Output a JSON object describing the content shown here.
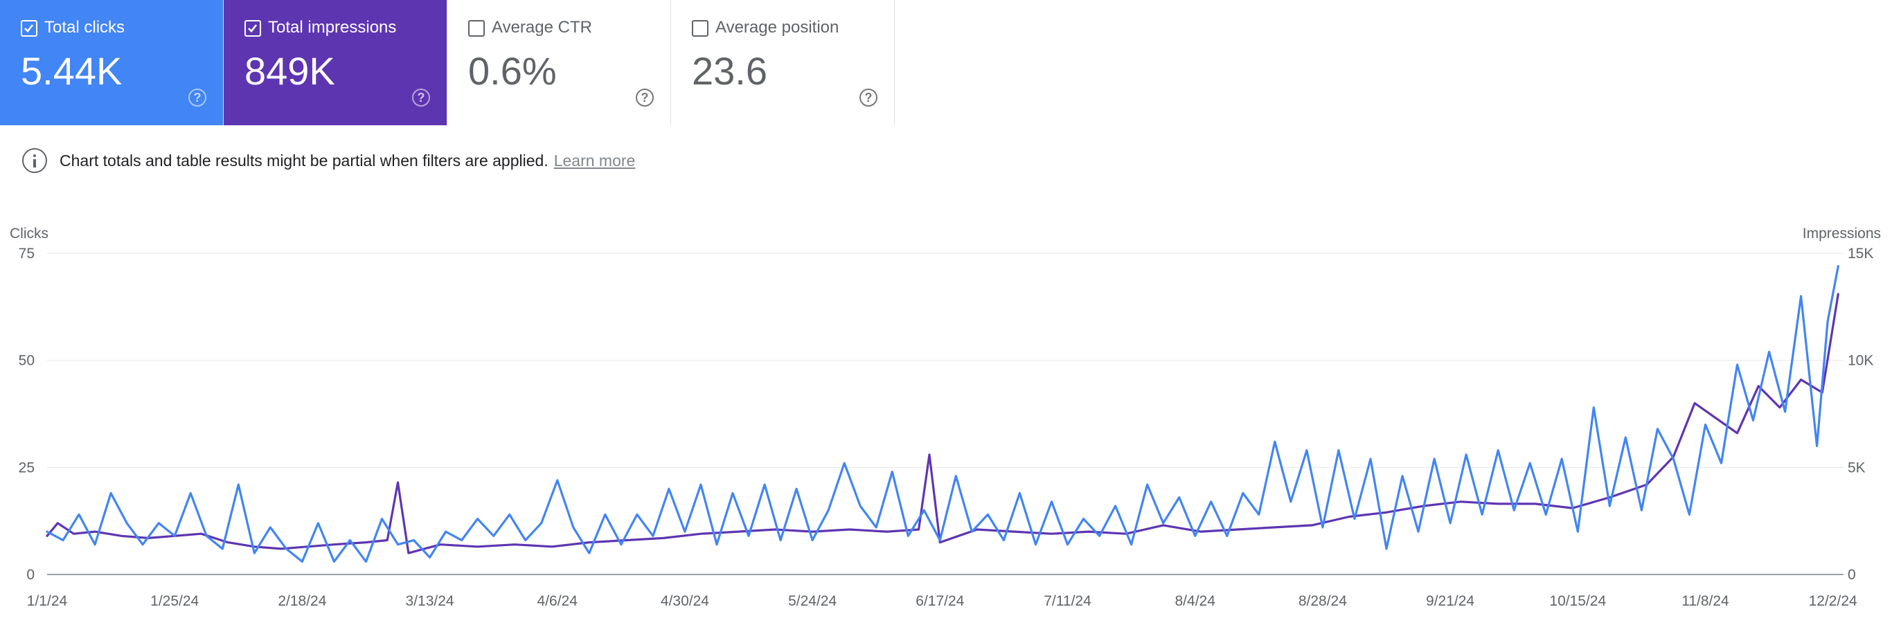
{
  "cards": [
    {
      "id": "clicks",
      "label": "Total clicks",
      "value": "5.44K",
      "checked": true
    },
    {
      "id": "impressions",
      "label": "Total impressions",
      "value": "849K",
      "checked": true
    },
    {
      "id": "ctr",
      "label": "Average CTR",
      "value": "0.6%",
      "checked": false
    },
    {
      "id": "position",
      "label": "Average position",
      "value": "23.6",
      "checked": false
    }
  ],
  "notice": {
    "text": "Chart totals and table results might be partial when filters are applied.",
    "link": "Learn more"
  },
  "colors": {
    "clicks": "#4285f4",
    "impressions": "#5e35b1"
  },
  "chart_data": {
    "type": "line",
    "ylabel_left": "Clicks",
    "ylabel_right": "Impressions",
    "yticks_left": [
      "0",
      "25",
      "50",
      "75"
    ],
    "yticks_right": [
      "0",
      "5K",
      "10K",
      "15K"
    ],
    "ylim_left": [
      0,
      75
    ],
    "ylim_right": [
      0,
      15000
    ],
    "xrange": [
      "2024-01-01",
      "2024-12-04"
    ],
    "xtick_labels": [
      "1/1/24",
      "1/25/24",
      "2/18/24",
      "3/13/24",
      "4/6/24",
      "4/30/24",
      "5/24/24",
      "6/17/24",
      "7/11/24",
      "8/4/24",
      "8/28/24",
      "9/21/24",
      "10/15/24",
      "11/8/24",
      "12/2/24"
    ],
    "xtick_dates": [
      "2024-01-01",
      "2024-01-25",
      "2024-02-18",
      "2024-03-13",
      "2024-04-06",
      "2024-04-30",
      "2024-05-24",
      "2024-06-17",
      "2024-07-11",
      "2024-08-04",
      "2024-08-28",
      "2024-09-21",
      "2024-10-15",
      "2024-11-08",
      "2024-12-02"
    ],
    "grid": true,
    "series": [
      {
        "name": "Clicks",
        "axis": "left",
        "points": [
          [
            "2024-01-01",
            10
          ],
          [
            "2024-01-04",
            8
          ],
          [
            "2024-01-07",
            14
          ],
          [
            "2024-01-10",
            7
          ],
          [
            "2024-01-13",
            19
          ],
          [
            "2024-01-16",
            12
          ],
          [
            "2024-01-19",
            7
          ],
          [
            "2024-01-22",
            12
          ],
          [
            "2024-01-25",
            9
          ],
          [
            "2024-01-28",
            19
          ],
          [
            "2024-01-31",
            9
          ],
          [
            "2024-02-03",
            6
          ],
          [
            "2024-02-06",
            21
          ],
          [
            "2024-02-09",
            5
          ],
          [
            "2024-02-12",
            11
          ],
          [
            "2024-02-15",
            6
          ],
          [
            "2024-02-18",
            3
          ],
          [
            "2024-02-21",
            12
          ],
          [
            "2024-02-24",
            3
          ],
          [
            "2024-02-27",
            8
          ],
          [
            "2024-03-01",
            3
          ],
          [
            "2024-03-04",
            13
          ],
          [
            "2024-03-07",
            7
          ],
          [
            "2024-03-10",
            8
          ],
          [
            "2024-03-13",
            4
          ],
          [
            "2024-03-16",
            10
          ],
          [
            "2024-03-19",
            8
          ],
          [
            "2024-03-22",
            13
          ],
          [
            "2024-03-25",
            9
          ],
          [
            "2024-03-28",
            14
          ],
          [
            "2024-03-31",
            8
          ],
          [
            "2024-04-03",
            12
          ],
          [
            "2024-04-06",
            22
          ],
          [
            "2024-04-09",
            11
          ],
          [
            "2024-04-12",
            5
          ],
          [
            "2024-04-15",
            14
          ],
          [
            "2024-04-18",
            7
          ],
          [
            "2024-04-21",
            14
          ],
          [
            "2024-04-24",
            9
          ],
          [
            "2024-04-27",
            20
          ],
          [
            "2024-04-30",
            10
          ],
          [
            "2024-05-03",
            21
          ],
          [
            "2024-05-06",
            7
          ],
          [
            "2024-05-09",
            19
          ],
          [
            "2024-05-12",
            9
          ],
          [
            "2024-05-15",
            21
          ],
          [
            "2024-05-18",
            8
          ],
          [
            "2024-05-21",
            20
          ],
          [
            "2024-05-24",
            8
          ],
          [
            "2024-05-27",
            15
          ],
          [
            "2024-05-30",
            26
          ],
          [
            "2024-06-02",
            16
          ],
          [
            "2024-06-05",
            11
          ],
          [
            "2024-06-08",
            24
          ],
          [
            "2024-06-11",
            9
          ],
          [
            "2024-06-14",
            15
          ],
          [
            "2024-06-17",
            8
          ],
          [
            "2024-06-20",
            23
          ],
          [
            "2024-06-23",
            10
          ],
          [
            "2024-06-26",
            14
          ],
          [
            "2024-06-29",
            8
          ],
          [
            "2024-07-02",
            19
          ],
          [
            "2024-07-05",
            7
          ],
          [
            "2024-07-08",
            17
          ],
          [
            "2024-07-11",
            7
          ],
          [
            "2024-07-14",
            13
          ],
          [
            "2024-07-17",
            9
          ],
          [
            "2024-07-20",
            16
          ],
          [
            "2024-07-23",
            7
          ],
          [
            "2024-07-26",
            21
          ],
          [
            "2024-07-29",
            12
          ],
          [
            "2024-08-01",
            18
          ],
          [
            "2024-08-04",
            9
          ],
          [
            "2024-08-07",
            17
          ],
          [
            "2024-08-10",
            9
          ],
          [
            "2024-08-13",
            19
          ],
          [
            "2024-08-16",
            14
          ],
          [
            "2024-08-19",
            31
          ],
          [
            "2024-08-22",
            17
          ],
          [
            "2024-08-25",
            29
          ],
          [
            "2024-08-28",
            11
          ],
          [
            "2024-08-31",
            29
          ],
          [
            "2024-09-03",
            13
          ],
          [
            "2024-09-06",
            27
          ],
          [
            "2024-09-09",
            6
          ],
          [
            "2024-09-12",
            23
          ],
          [
            "2024-09-15",
            10
          ],
          [
            "2024-09-18",
            27
          ],
          [
            "2024-09-21",
            12
          ],
          [
            "2024-09-24",
            28
          ],
          [
            "2024-09-27",
            14
          ],
          [
            "2024-09-30",
            29
          ],
          [
            "2024-10-03",
            15
          ],
          [
            "2024-10-06",
            26
          ],
          [
            "2024-10-09",
            14
          ],
          [
            "2024-10-12",
            27
          ],
          [
            "2024-10-15",
            10
          ],
          [
            "2024-10-18",
            39
          ],
          [
            "2024-10-21",
            16
          ],
          [
            "2024-10-24",
            32
          ],
          [
            "2024-10-27",
            15
          ],
          [
            "2024-10-30",
            34
          ],
          [
            "2024-11-02",
            27
          ],
          [
            "2024-11-05",
            14
          ],
          [
            "2024-11-08",
            35
          ],
          [
            "2024-11-11",
            26
          ],
          [
            "2024-11-14",
            49
          ],
          [
            "2024-11-17",
            36
          ],
          [
            "2024-11-20",
            52
          ],
          [
            "2024-11-23",
            38
          ],
          [
            "2024-11-26",
            65
          ],
          [
            "2024-11-29",
            30
          ],
          [
            "2024-12-01",
            59
          ],
          [
            "2024-12-03",
            72
          ]
        ]
      },
      {
        "name": "Impressions",
        "axis": "right",
        "points": [
          [
            "2024-01-01",
            1800
          ],
          [
            "2024-01-03",
            2400
          ],
          [
            "2024-01-06",
            1900
          ],
          [
            "2024-01-10",
            2000
          ],
          [
            "2024-01-15",
            1800
          ],
          [
            "2024-01-20",
            1700
          ],
          [
            "2024-01-25",
            1800
          ],
          [
            "2024-01-30",
            1900
          ],
          [
            "2024-02-04",
            1500
          ],
          [
            "2024-02-09",
            1300
          ],
          [
            "2024-02-14",
            1200
          ],
          [
            "2024-02-19",
            1300
          ],
          [
            "2024-02-24",
            1400
          ],
          [
            "2024-03-01",
            1500
          ],
          [
            "2024-03-05",
            1600
          ],
          [
            "2024-03-07",
            4300
          ],
          [
            "2024-03-09",
            1000
          ],
          [
            "2024-03-15",
            1400
          ],
          [
            "2024-03-22",
            1300
          ],
          [
            "2024-03-29",
            1400
          ],
          [
            "2024-04-05",
            1300
          ],
          [
            "2024-04-12",
            1500
          ],
          [
            "2024-04-19",
            1600
          ],
          [
            "2024-04-26",
            1700
          ],
          [
            "2024-05-03",
            1900
          ],
          [
            "2024-05-10",
            2000
          ],
          [
            "2024-05-17",
            2100
          ],
          [
            "2024-05-24",
            2000
          ],
          [
            "2024-05-31",
            2100
          ],
          [
            "2024-06-07",
            2000
          ],
          [
            "2024-06-13",
            2100
          ],
          [
            "2024-06-15",
            5600
          ],
          [
            "2024-06-17",
            1500
          ],
          [
            "2024-06-24",
            2100
          ],
          [
            "2024-07-01",
            2000
          ],
          [
            "2024-07-08",
            1900
          ],
          [
            "2024-07-15",
            2000
          ],
          [
            "2024-07-22",
            1900
          ],
          [
            "2024-07-29",
            2300
          ],
          [
            "2024-08-05",
            2000
          ],
          [
            "2024-08-12",
            2100
          ],
          [
            "2024-08-19",
            2200
          ],
          [
            "2024-08-26",
            2300
          ],
          [
            "2024-09-02",
            2700
          ],
          [
            "2024-09-09",
            2900
          ],
          [
            "2024-09-16",
            3200
          ],
          [
            "2024-09-23",
            3400
          ],
          [
            "2024-09-30",
            3300
          ],
          [
            "2024-10-07",
            3300
          ],
          [
            "2024-10-14",
            3100
          ],
          [
            "2024-10-21",
            3600
          ],
          [
            "2024-10-28",
            4200
          ],
          [
            "2024-11-02",
            5500
          ],
          [
            "2024-11-06",
            8000
          ],
          [
            "2024-11-10",
            7300
          ],
          [
            "2024-11-14",
            6600
          ],
          [
            "2024-11-18",
            8800
          ],
          [
            "2024-11-22",
            7800
          ],
          [
            "2024-11-26",
            9100
          ],
          [
            "2024-11-30",
            8500
          ],
          [
            "2024-12-03",
            13100
          ]
        ]
      }
    ]
  }
}
